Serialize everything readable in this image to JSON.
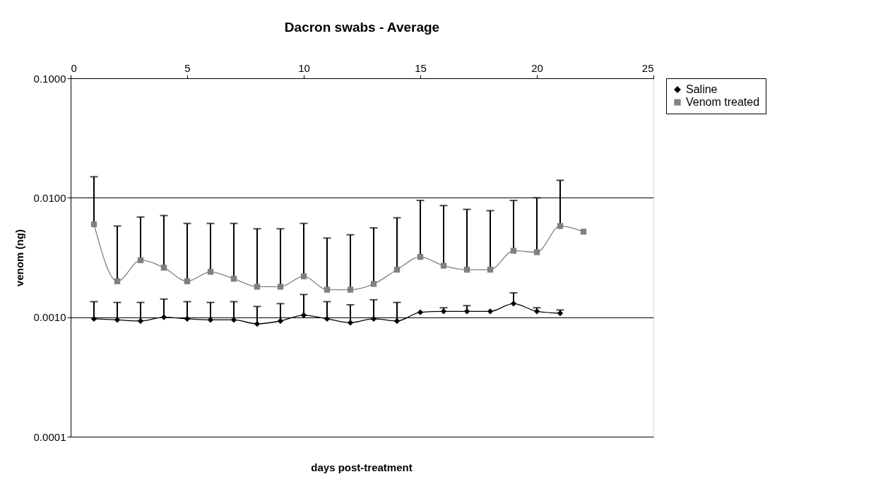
{
  "chart_data": {
    "type": "line",
    "title": "Dacron swabs - Average",
    "xlabel": "days post-treatment",
    "ylabel": "venom (ng)",
    "x": [
      1,
      2,
      3,
      4,
      5,
      6,
      7,
      8,
      9,
      10,
      11,
      12,
      13,
      14,
      15,
      16,
      17,
      18,
      19,
      20,
      21,
      22
    ],
    "series": [
      {
        "name": "Saline",
        "color": "#000000",
        "marker": "diamond",
        "values": [
          0.00097,
          0.00095,
          0.00093,
          0.001,
          0.00097,
          0.00095,
          0.00095,
          0.00088,
          0.00093,
          0.00104,
          0.00097,
          0.0009,
          0.00097,
          0.00093,
          0.0011,
          0.00112,
          0.00112,
          0.00112,
          0.0013,
          0.00112,
          0.00108,
          null
        ],
        "errors": [
          [
            0.00097,
            0.00135
          ],
          [
            0.00095,
            0.00133
          ],
          [
            0.00093,
            0.00133
          ],
          [
            0.001,
            0.00142
          ],
          [
            0.00097,
            0.00135
          ],
          [
            0.00095,
            0.00133
          ],
          [
            0.00095,
            0.00135
          ],
          [
            0.00088,
            0.00123
          ],
          [
            0.00093,
            0.0013
          ],
          [
            0.00104,
            0.00155
          ],
          [
            0.00097,
            0.00135
          ],
          [
            0.0009,
            0.00127
          ],
          [
            0.00097,
            0.0014
          ],
          [
            0.00093,
            0.00133
          ],
          null,
          [
            0.00112,
            0.0012
          ],
          [
            0.00112,
            0.00125
          ],
          null,
          [
            0.0013,
            0.0016
          ],
          [
            0.00112,
            0.0012
          ],
          [
            0.00108,
            0.00115
          ],
          null
        ]
      },
      {
        "name": "Venom treated",
        "color": "#808080",
        "marker": "square",
        "values": [
          0.006,
          0.002,
          0.003,
          0.0026,
          0.002,
          0.0024,
          0.0021,
          0.0018,
          0.0018,
          0.0022,
          0.0017,
          0.0017,
          0.0019,
          0.0025,
          0.0032,
          0.0027,
          0.0025,
          0.0025,
          0.0036,
          0.0035,
          0.0058,
          0.0052
        ],
        "errors": [
          [
            0.006,
            0.015
          ],
          [
            0.002,
            0.0058
          ],
          [
            0.003,
            0.0069
          ],
          [
            0.0026,
            0.0071
          ],
          [
            0.002,
            0.0061
          ],
          [
            0.0024,
            0.0061
          ],
          [
            0.0021,
            0.0061
          ],
          [
            0.0018,
            0.0055
          ],
          [
            0.0018,
            0.0055
          ],
          [
            0.0022,
            0.0061
          ],
          [
            0.0017,
            0.0046
          ],
          [
            0.0017,
            0.0049
          ],
          [
            0.0019,
            0.0056
          ],
          [
            0.0025,
            0.0068
          ],
          [
            0.0032,
            0.0095
          ],
          [
            0.0027,
            0.0086
          ],
          [
            0.0025,
            0.008
          ],
          [
            0.0025,
            0.0078
          ],
          [
            0.0036,
            0.0095
          ],
          [
            0.0035,
            0.01
          ],
          [
            0.0058,
            0.014
          ],
          null
        ]
      }
    ],
    "xlim": [
      0,
      25
    ],
    "xticks": [
      0,
      5,
      10,
      15,
      20,
      25
    ],
    "ylim": [
      0.0001,
      0.1
    ],
    "yticks": [
      {
        "value": 0.0001,
        "label": "0.0001"
      },
      {
        "value": 0.001,
        "label": "0.0010"
      },
      {
        "value": 0.01,
        "label": "0.0100"
      },
      {
        "value": 0.1,
        "label": "0.1000"
      }
    ],
    "log": "y",
    "grid": "y",
    "legend": "right",
    "line_style": "solid"
  }
}
